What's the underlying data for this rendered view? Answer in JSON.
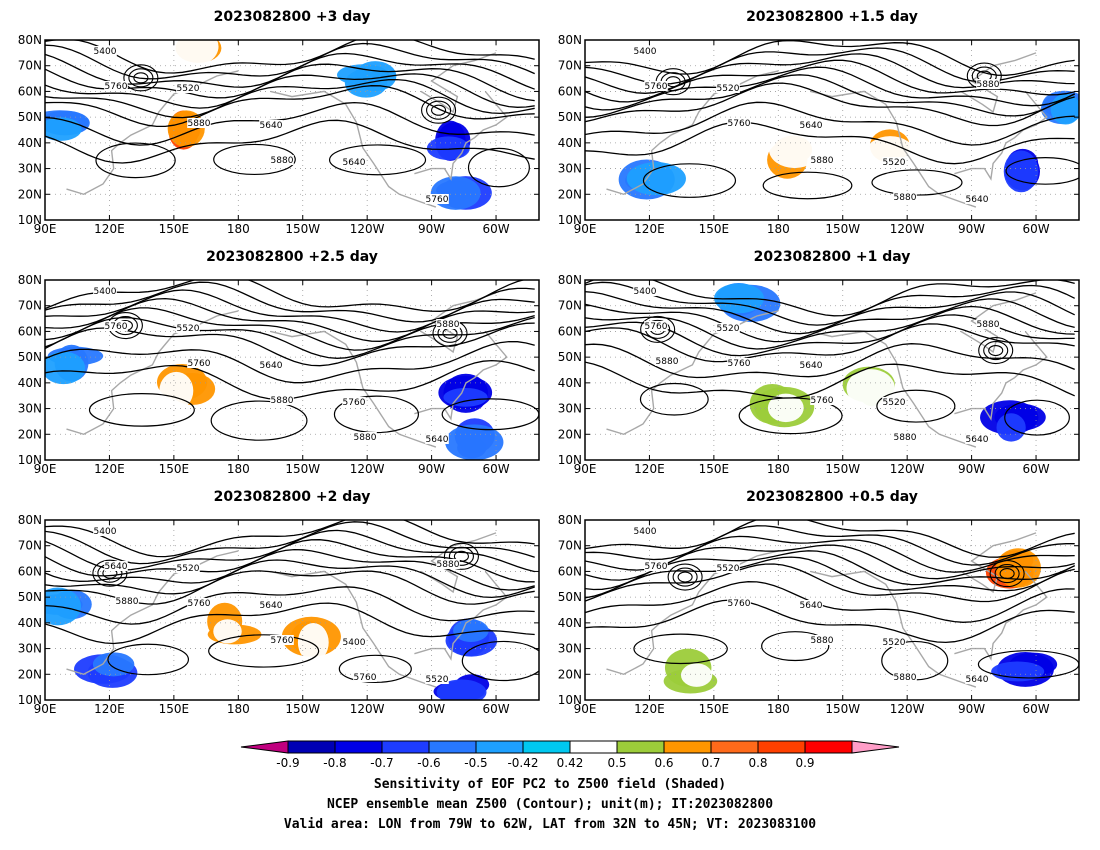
{
  "chart_data": [
    {
      "type": "heatmap",
      "title": "2023082800 +3 day",
      "x_ticks": [
        "90E",
        "120E",
        "150E",
        "180",
        "150W",
        "120W",
        "90W",
        "60W"
      ],
      "y_ticks": [
        "80N",
        "70N",
        "60N",
        "50N",
        "40N",
        "30N",
        "20N",
        "10N"
      ],
      "xlim_lon_east": [
        90,
        320
      ],
      "ylim_lat": [
        10,
        80
      ],
      "contour_labels": [
        "5400",
        "5520",
        "5640",
        "5640",
        "5760",
        "5760",
        "5880",
        "5880"
      ],
      "sensitivity_regions": [
        {
          "lon": 155,
          "lat": 45,
          "value": 0.8
        },
        {
          "lon": 160,
          "lat": 75,
          "value": 0.6
        },
        {
          "lon": 100,
          "lat": 48,
          "value": -0.6
        },
        {
          "lon": 280,
          "lat": 40,
          "value": -0.8
        },
        {
          "lon": 285,
          "lat": 20,
          "value": -0.7
        },
        {
          "lon": 240,
          "lat": 65,
          "value": -0.5
        }
      ]
    },
    {
      "type": "heatmap",
      "title": "2023082800 +1.5 day",
      "x_ticks": [
        "90E",
        "120E",
        "150E",
        "180",
        "150W",
        "120W",
        "90W",
        "60W"
      ],
      "y_ticks": [
        "80N",
        "70N",
        "60N",
        "50N",
        "40N",
        "30N",
        "20N",
        "10N"
      ],
      "xlim_lon_east": [
        90,
        320
      ],
      "ylim_lat": [
        10,
        80
      ],
      "contour_labels": [
        "5400",
        "5520",
        "5640",
        "5520",
        "5640",
        "5760",
        "5760",
        "5880",
        "5880",
        "5880"
      ],
      "sensitivity_regions": [
        {
          "lon": 185,
          "lat": 35,
          "value": 0.6
        },
        {
          "lon": 230,
          "lat": 38,
          "value": 0.6
        },
        {
          "lon": 120,
          "lat": 25,
          "value": -0.6
        },
        {
          "lon": 290,
          "lat": 30,
          "value": -0.8
        },
        {
          "lon": 315,
          "lat": 55,
          "value": -0.6
        }
      ]
    },
    {
      "type": "heatmap",
      "title": "2023082800 +2.5 day",
      "x_ticks": [
        "90E",
        "120E",
        "150E",
        "180",
        "150W",
        "120W",
        "90W",
        "60W"
      ],
      "y_ticks": [
        "80N",
        "70N",
        "60N",
        "50N",
        "40N",
        "30N",
        "20N",
        "10N"
      ],
      "xlim_lon_east": [
        90,
        320
      ],
      "ylim_lat": [
        10,
        80
      ],
      "contour_labels": [
        "5400",
        "5520",
        "5640",
        "5760",
        "5640",
        "5760",
        "5760",
        "5880",
        "5880",
        "5880"
      ],
      "sensitivity_regions": [
        {
          "lon": 155,
          "lat": 38,
          "value": 0.6
        },
        {
          "lon": 100,
          "lat": 48,
          "value": -0.6
        },
        {
          "lon": 285,
          "lat": 35,
          "value": -0.8
        },
        {
          "lon": 290,
          "lat": 17,
          "value": -0.7
        }
      ]
    },
    {
      "type": "heatmap",
      "title": "2023082800 +1 day",
      "x_ticks": [
        "90E",
        "120E",
        "150E",
        "180",
        "150W",
        "120W",
        "90W",
        "60W"
      ],
      "y_ticks": [
        "80N",
        "70N",
        "60N",
        "50N",
        "40N",
        "30N",
        "20N",
        "10N"
      ],
      "xlim_lon_east": [
        90,
        320
      ],
      "ylim_lat": [
        10,
        80
      ],
      "contour_labels": [
        "5400",
        "5520",
        "5640",
        "5520",
        "5640",
        "5760",
        "5760",
        "5760",
        "5880",
        "5880",
        "5880"
      ],
      "sensitivity_regions": [
        {
          "lon": 225,
          "lat": 37,
          "value": 0.5
        },
        {
          "lon": 180,
          "lat": 32,
          "value": 0.5
        },
        {
          "lon": 290,
          "lat": 25,
          "value": -0.8
        },
        {
          "lon": 165,
          "lat": 72,
          "value": -0.6
        }
      ]
    },
    {
      "type": "heatmap",
      "title": "2023082800 +2 day",
      "x_ticks": [
        "90E",
        "120E",
        "150E",
        "180",
        "150W",
        "120W",
        "90W",
        "60W"
      ],
      "y_ticks": [
        "80N",
        "70N",
        "60N",
        "50N",
        "40N",
        "30N",
        "20N",
        "10N"
      ],
      "xlim_lon_east": [
        90,
        320
      ],
      "ylim_lat": [
        10,
        80
      ],
      "contour_labels": [
        "5400",
        "5520",
        "5640",
        "5400",
        "5520",
        "5640",
        "5760",
        "5760",
        "5760",
        "5880",
        "5880"
      ],
      "sensitivity_regions": [
        {
          "lon": 215,
          "lat": 35,
          "value": 0.6
        },
        {
          "lon": 175,
          "lat": 38,
          "value": 0.6
        },
        {
          "lon": 100,
          "lat": 45,
          "value": -0.6
        },
        {
          "lon": 120,
          "lat": 22,
          "value": -0.7
        },
        {
          "lon": 290,
          "lat": 35,
          "value": -0.7
        },
        {
          "lon": 285,
          "lat": 15,
          "value": -0.8
        }
      ]
    },
    {
      "type": "heatmap",
      "title": "2023082800 +0.5 day",
      "x_ticks": [
        "90E",
        "120E",
        "150E",
        "180",
        "150W",
        "120W",
        "90W",
        "60W"
      ],
      "y_ticks": [
        "80N",
        "70N",
        "60N",
        "50N",
        "40N",
        "30N",
        "20N",
        "10N"
      ],
      "xlim_lon_east": [
        90,
        320
      ],
      "ylim_lat": [
        10,
        80
      ],
      "contour_labels": [
        "5400",
        "5520",
        "5640",
        "5520",
        "5640",
        "5760",
        "5760",
        "5880",
        "5880"
      ],
      "sensitivity_regions": [
        {
          "lon": 290,
          "lat": 62,
          "value": 0.8
        },
        {
          "lon": 295,
          "lat": 22,
          "value": -0.8
        },
        {
          "lon": 140,
          "lat": 20,
          "value": 0.5
        }
      ]
    }
  ],
  "colorbar": {
    "ticks": [
      "-0.9",
      "-0.8",
      "-0.7",
      "-0.6",
      "-0.5",
      "-0.42",
      "0.42",
      "0.5",
      "0.6",
      "0.7",
      "0.8",
      "0.9"
    ],
    "colors": [
      "#c0007f",
      "#0000b4",
      "#0000e6",
      "#1e3cff",
      "#2878ff",
      "#1ea0ff",
      "#00c8f0",
      "#ffffff",
      "#9ccc3a",
      "#ff9600",
      "#ff6a1a",
      "#ff4000",
      "#ff0000",
      "#ff9ec8"
    ]
  },
  "footer": {
    "line1": "Sensitivity of EOF PC2 to Z500 field (Shaded)",
    "line2": "NCEP ensemble mean Z500 (Contour); unit(m); IT:2023082800",
    "line3": "Valid area: LON from 79W to 62W, LAT from 32N to 45N; VT: 2023083100"
  }
}
